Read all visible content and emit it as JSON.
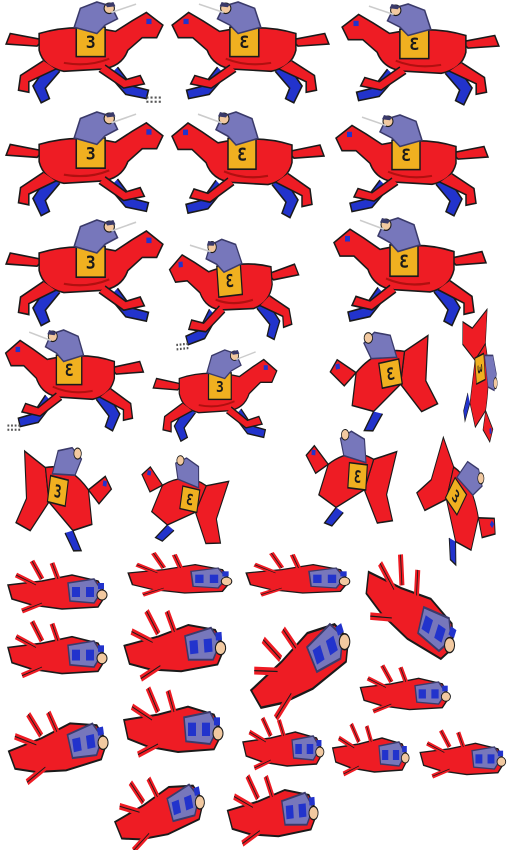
{
  "sheet": {
    "background": "#ffffff",
    "colors": {
      "horse": "#ee1c24",
      "horse_shade": "#b01010",
      "legs_blue": "#2233cc",
      "rider": "#7777bb",
      "rider_dark": "#3a3a6a",
      "skin": "#f2c9a0",
      "saddle_cloth": "#f0b020",
      "outline": "#1a1a1a",
      "dust": "#555555"
    },
    "badge_label": "3",
    "groups": {
      "running": "horse-run",
      "falling": "horse-fall",
      "fallen": "horse-fallen"
    }
  }
}
